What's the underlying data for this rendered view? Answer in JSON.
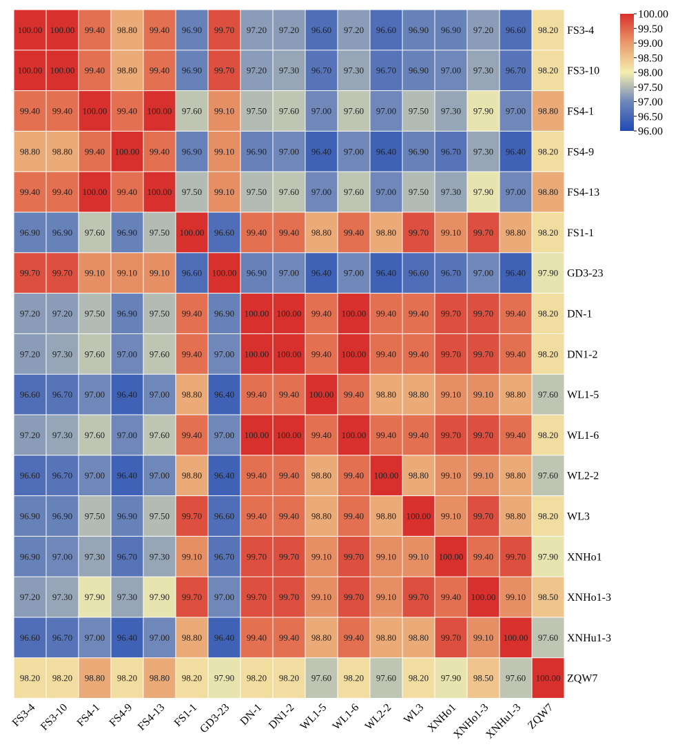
{
  "chart_data": {
    "type": "heatmap",
    "title": "",
    "xlabel": "",
    "ylabel": "",
    "rows": [
      "FS3-4",
      "FS3-10",
      "FS4-1",
      "FS4-9",
      "FS4-13",
      "FS1-1",
      "GD3-23",
      "DN-1",
      "DN1-2",
      "WL1-5",
      "WL1-6",
      "WL2-2",
      "WL3",
      "XNHo1",
      "XNHo1-3",
      "XNHu1-3",
      "ZQW7"
    ],
    "columns": [
      "FS3-4",
      "FS3-10",
      "FS4-1",
      "FS4-9",
      "FS4-13",
      "FS1-1",
      "GD3-23",
      "DN-1",
      "DN1-2",
      "WL1-5",
      "WL1-6",
      "WL2-2",
      "WL3",
      "XNHo1",
      "XNHo1-3",
      "XNHu1-3",
      "ZQW7"
    ],
    "values": [
      [
        100.0,
        100.0,
        99.4,
        98.8,
        99.4,
        96.9,
        99.7,
        97.2,
        97.2,
        96.6,
        97.2,
        96.6,
        96.9,
        96.9,
        97.2,
        96.6,
        98.2
      ],
      [
        100.0,
        100.0,
        99.4,
        98.8,
        99.4,
        96.9,
        99.7,
        97.2,
        97.3,
        96.7,
        97.3,
        96.7,
        96.9,
        97.0,
        97.3,
        96.7,
        98.2
      ],
      [
        99.4,
        99.4,
        100.0,
        99.4,
        100.0,
        97.6,
        99.1,
        97.5,
        97.6,
        97.0,
        97.6,
        97.0,
        97.5,
        97.3,
        97.9,
        97.0,
        98.8
      ],
      [
        98.8,
        98.8,
        99.4,
        100.0,
        99.4,
        96.9,
        99.1,
        96.9,
        97.0,
        96.4,
        97.0,
        96.4,
        96.9,
        96.7,
        97.3,
        96.4,
        98.2
      ],
      [
        99.4,
        99.4,
        100.0,
        99.4,
        100.0,
        97.5,
        99.1,
        97.5,
        97.6,
        97.0,
        97.6,
        97.0,
        97.5,
        97.3,
        97.9,
        97.0,
        98.8
      ],
      [
        96.9,
        96.9,
        97.6,
        96.9,
        97.5,
        100.0,
        96.6,
        99.4,
        99.4,
        98.8,
        99.4,
        98.8,
        99.7,
        99.1,
        99.7,
        98.8,
        98.2
      ],
      [
        99.7,
        99.7,
        99.1,
        99.1,
        99.1,
        96.6,
        100.0,
        96.9,
        97.0,
        96.4,
        97.0,
        96.4,
        96.6,
        96.7,
        97.0,
        96.4,
        97.9
      ],
      [
        97.2,
        97.2,
        97.5,
        96.9,
        97.5,
        99.4,
        96.9,
        100.0,
        100.0,
        99.4,
        100.0,
        99.4,
        99.4,
        99.7,
        99.7,
        99.4,
        98.2
      ],
      [
        97.2,
        97.3,
        97.6,
        97.0,
        97.6,
        99.4,
        97.0,
        100.0,
        100.0,
        99.4,
        100.0,
        99.4,
        99.4,
        99.7,
        99.7,
        99.4,
        98.2
      ],
      [
        96.6,
        96.7,
        97.0,
        96.4,
        97.0,
        98.8,
        96.4,
        99.4,
        99.4,
        100.0,
        99.4,
        98.8,
        98.8,
        99.1,
        99.1,
        98.8,
        97.6
      ],
      [
        97.2,
        97.3,
        97.6,
        97.0,
        97.6,
        99.4,
        97.0,
        100.0,
        100.0,
        99.4,
        100.0,
        99.4,
        99.4,
        99.7,
        99.7,
        99.4,
        98.2
      ],
      [
        96.6,
        96.7,
        97.0,
        96.4,
        97.0,
        98.8,
        96.4,
        99.4,
        99.4,
        98.8,
        99.4,
        100.0,
        98.8,
        99.1,
        99.1,
        98.8,
        97.6
      ],
      [
        96.9,
        96.9,
        97.5,
        96.9,
        97.5,
        99.7,
        96.6,
        99.4,
        99.4,
        98.8,
        99.4,
        98.8,
        100.0,
        99.1,
        99.7,
        98.8,
        98.2
      ],
      [
        96.9,
        97.0,
        97.3,
        96.7,
        97.3,
        99.1,
        96.7,
        99.7,
        99.7,
        99.1,
        99.7,
        99.1,
        99.1,
        100.0,
        99.4,
        99.7,
        97.9
      ],
      [
        97.2,
        97.3,
        97.9,
        97.3,
        97.9,
        99.7,
        97.0,
        99.7,
        99.7,
        99.1,
        99.7,
        99.1,
        99.7,
        99.4,
        100.0,
        99.1,
        98.5
      ],
      [
        96.6,
        96.7,
        97.0,
        96.4,
        97.0,
        98.8,
        96.4,
        99.4,
        99.4,
        98.8,
        99.4,
        98.8,
        98.8,
        99.7,
        99.1,
        100.0,
        97.6
      ],
      [
        98.2,
        98.2,
        98.8,
        98.2,
        98.8,
        98.2,
        97.9,
        98.2,
        98.2,
        97.6,
        98.2,
        97.6,
        98.2,
        97.9,
        98.5,
        97.6,
        100.0
      ]
    ],
    "value_format_decimals": 2,
    "color_scale": {
      "min": 96.0,
      "max": 100.0,
      "stops": [
        {
          "value": 96.0,
          "color": "#1f49b4"
        },
        {
          "value": 97.0,
          "color": "#6f87b9"
        },
        {
          "value": 98.0,
          "color": "#f4eeaf"
        },
        {
          "value": 99.0,
          "color": "#e99a6a"
        },
        {
          "value": 100.0,
          "color": "#d8302c"
        }
      ],
      "ticks": [
        100.0,
        99.5,
        99.0,
        98.5,
        98.0,
        97.5,
        97.0,
        96.5,
        96.0
      ],
      "tick_labels": [
        "100.00",
        "99.50",
        "99.00",
        "98.50",
        "98.00",
        "97.50",
        "97.00",
        "96.50",
        "96.00"
      ]
    },
    "grid": true,
    "legend_position": "top-right"
  }
}
